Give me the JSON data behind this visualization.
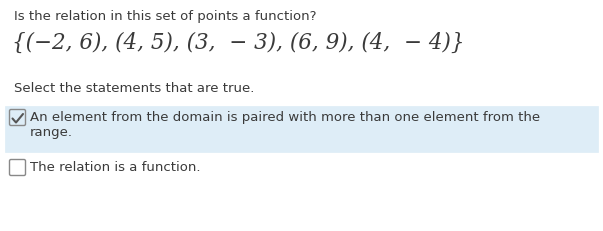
{
  "title_text": "Is the relation in this set of points a function?",
  "set_text": "{(−2, 6), (4, 5), (3,  − 3), (6, 9), (4,  − 4)}",
  "select_text": "Select the statements that are true.",
  "option1_line1": "An element from the domain is paired with more than one element from the",
  "option1_line2": "range.",
  "option2_text": "The relation is a function.",
  "bg_color": "#ffffff",
  "highlight_color": "#deedf7",
  "text_color": "#3a3a3a",
  "title_fontsize": 9.5,
  "set_fontsize": 15.5,
  "select_fontsize": 9.5,
  "option_fontsize": 9.5,
  "checkbox_color": "#888888",
  "check_color": "#555555"
}
